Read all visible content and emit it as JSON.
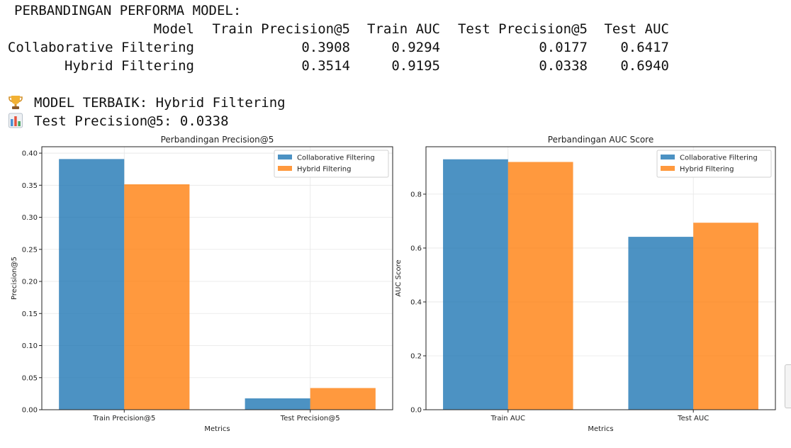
{
  "output": {
    "heading": "PERBANDINGAN PERFORMA MODEL:",
    "table": {
      "columns": [
        "Model",
        "Train Precision@5",
        "Train AUC",
        "Test Precision@5",
        "Test AUC"
      ],
      "rows": [
        [
          "Collaborative Filtering",
          "0.3908",
          "0.9294",
          "0.0177",
          "0.6417"
        ],
        [
          "Hybrid Filtering",
          "0.3514",
          "0.9195",
          "0.0338",
          "0.6940"
        ]
      ]
    },
    "best_model_line": "MODEL TERBAIK: Hybrid Filtering",
    "best_precision_line": "Test Precision@5: 0.0338",
    "trophy_icon": "trophy-icon",
    "chart_icon": "bar-chart-icon"
  },
  "chart_data": [
    {
      "type": "bar",
      "title": "Perbandingan Precision@5",
      "xlabel": "Metrics",
      "ylabel": "Precision@5",
      "categories": [
        "Train Precision@5",
        "Test Precision@5"
      ],
      "series": [
        {
          "name": "Collaborative Filtering",
          "values": [
            0.3908,
            0.0177
          ],
          "color": "#1f77b4"
        },
        {
          "name": "Hybrid Filtering",
          "values": [
            0.3514,
            0.0338
          ],
          "color": "#ff7f0e"
        }
      ],
      "ylim": [
        0,
        0.41
      ],
      "yticks": [
        "0.00",
        "0.05",
        "0.10",
        "0.15",
        "0.20",
        "0.25",
        "0.30",
        "0.35",
        "0.40"
      ],
      "grid": true,
      "legend": "top-right"
    },
    {
      "type": "bar",
      "title": "Perbandingan AUC Score",
      "xlabel": "Metrics",
      "ylabel": "AUC Score",
      "categories": [
        "Train AUC",
        "Test AUC"
      ],
      "series": [
        {
          "name": "Collaborative Filtering",
          "values": [
            0.9294,
            0.6417
          ],
          "color": "#1f77b4"
        },
        {
          "name": "Hybrid Filtering",
          "values": [
            0.9195,
            0.694
          ],
          "color": "#ff7f0e"
        }
      ],
      "ylim": [
        0,
        0.976
      ],
      "yticks": [
        "0.0",
        "0.2",
        "0.4",
        "0.6",
        "0.8"
      ],
      "grid": true,
      "legend": "top-right"
    }
  ]
}
